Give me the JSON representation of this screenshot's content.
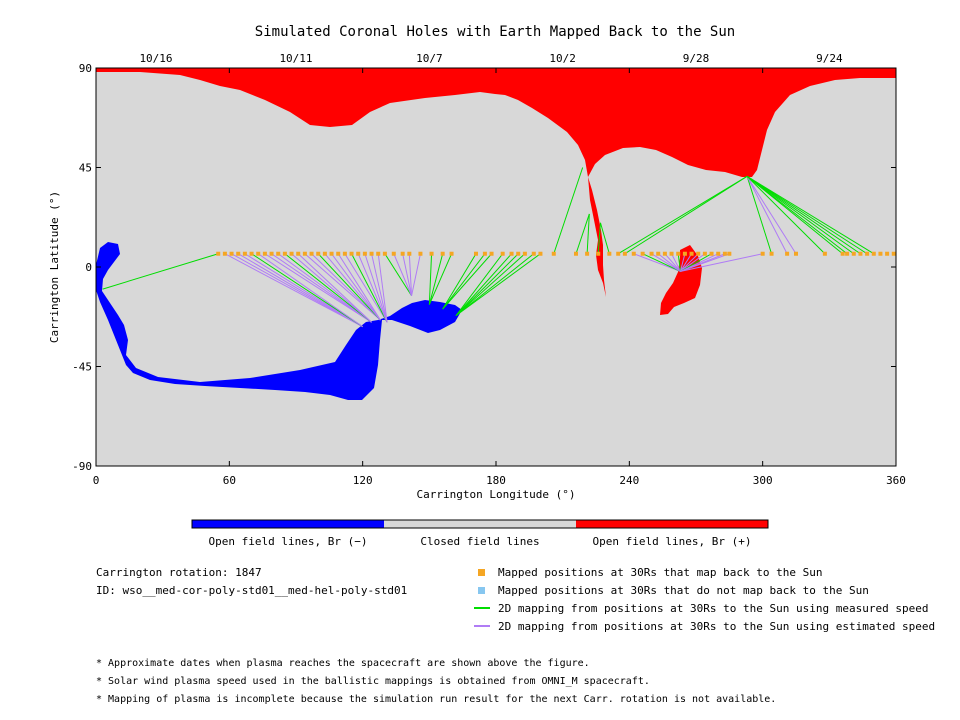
{
  "chart_data": {
    "type": "map",
    "title": "Simulated Coronal Holes with Earth Mapped Back to the Sun",
    "xlabel": "Carrington Longitude (°)",
    "ylabel": "Carrington Latitude (°)",
    "xlim": [
      0,
      360
    ],
    "ylim": [
      -90,
      90
    ],
    "xticks": [
      {
        "value": 0,
        "label": "0"
      },
      {
        "value": 60,
        "label": "60"
      },
      {
        "value": 120,
        "label": "120"
      },
      {
        "value": 180,
        "label": "180"
      },
      {
        "value": 240,
        "label": "240"
      },
      {
        "value": 300,
        "label": "300"
      },
      {
        "value": 360,
        "label": "360"
      }
    ],
    "yticks": [
      {
        "value": 90,
        "label": "90"
      },
      {
        "value": 45,
        "label": "45"
      },
      {
        "value": 0,
        "label": "0"
      },
      {
        "value": -45,
        "label": "-45"
      },
      {
        "value": -90,
        "label": "-90"
      }
    ],
    "date_ticks": [
      {
        "lon": 27,
        "label": "10/16"
      },
      {
        "lon": 90,
        "label": "10/11"
      },
      {
        "lon": 150,
        "label": "10/7"
      },
      {
        "lon": 210,
        "label": "10/2"
      },
      {
        "lon": 270,
        "label": "9/28"
      },
      {
        "lon": 330,
        "label": "9/24"
      }
    ],
    "colors": {
      "closed": "#d8d8d8",
      "open_negative": "#0000ff",
      "open_positive": "#ff0000",
      "mapped": "#f5a623",
      "unmapped": "#87c7f0",
      "measured": "#00dd00",
      "estimated": "#b07cf5"
    },
    "mapped_latitude": 6,
    "mapped_positions": [
      55,
      58,
      61,
      64,
      67,
      70,
      73,
      76,
      79,
      82,
      85,
      88,
      91,
      94,
      97,
      100,
      103,
      106,
      109,
      112,
      115,
      118,
      121,
      124,
      127,
      130,
      134,
      138,
      141,
      146,
      151,
      156,
      160,
      171,
      175,
      178,
      183,
      187,
      190,
      193,
      197,
      200,
      206,
      216,
      221,
      226,
      231,
      235,
      238,
      242,
      246,
      250,
      253,
      256,
      259,
      262,
      265,
      268,
      271,
      274,
      277,
      280,
      283,
      285,
      300,
      304,
      311,
      315,
      328,
      336,
      338,
      341,
      344,
      347,
      350,
      353,
      356,
      359
    ],
    "hole_targets": {
      "negative": [
        [
          120,
          -27
        ],
        [
          124,
          -25
        ],
        [
          128,
          -24
        ],
        [
          131,
          -25
        ],
        [
          142,
          -13
        ],
        [
          150,
          -17
        ],
        [
          156,
          -19
        ],
        [
          162,
          -22
        ]
      ],
      "positive_south": [
        263,
        -2
      ],
      "positive_north": [
        [
          219,
          45
        ],
        [
          221,
          30
        ],
        [
          222,
          24
        ],
        [
          227,
          20
        ],
        [
          293,
          41
        ]
      ],
      "left_limb": [
        3,
        -10
      ]
    },
    "legend": {
      "colorbar": [
        {
          "label": "Open field lines, Br (−)",
          "color": "#0000ff"
        },
        {
          "label": "Closed field lines",
          "color": "#d8d8d8"
        },
        {
          "label": "Open field lines, Br (+)",
          "color": "#ff0000"
        }
      ],
      "markers": [
        {
          "label": "Mapped positions at 30Rs that map back to the Sun",
          "kind": "square",
          "color": "#f5a623"
        },
        {
          "label": "Mapped positions at 30Rs that do not map back to the Sun",
          "kind": "square",
          "color": "#87c7f0"
        },
        {
          "label": "2D mapping from positions at 30Rs to the Sun using measured speed",
          "kind": "line",
          "color": "#00dd00"
        },
        {
          "label": "2D mapping from positions at 30Rs to the Sun using estimated speed",
          "kind": "line",
          "color": "#b07cf5"
        }
      ]
    },
    "info": {
      "rotation": "Carrington rotation: 1847",
      "id": "ID: wso__med-cor-poly-std01__med-hel-poly-std01"
    },
    "notes": [
      "* Approximate dates when plasma reaches the spacecraft are shown above the figure.",
      "* Solar wind plasma speed used in the ballistic mappings is obtained from OMNI_M spacecraft.",
      "* Mapping of plasma is incomplete because the simulation run result for the next Carr. rotation is not available."
    ]
  }
}
